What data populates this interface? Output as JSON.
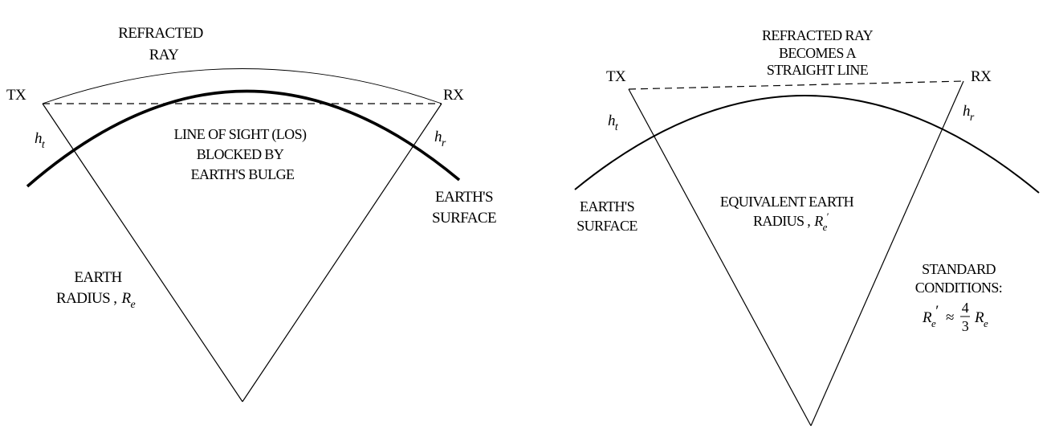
{
  "left": {
    "tx": "TX",
    "rx": "RX",
    "refracted_ray": [
      "REFRACTED",
      "RAY"
    ],
    "ht": {
      "main": "h",
      "sub": "t"
    },
    "hr": {
      "main": "h",
      "sub": "r"
    },
    "los": [
      "LINE OF SIGHT (LOS)",
      "BLOCKED BY",
      "EARTH'S BULGE"
    ],
    "surface": [
      "EARTH'S",
      "SURFACE"
    ],
    "radius": {
      "line1": "EARTH",
      "line2": "RADIUS ,",
      "symbol": "R",
      "sub": "e"
    }
  },
  "right": {
    "tx": "TX",
    "rx": "RX",
    "refracted_ray": [
      "REFRACTED RAY",
      "BECOMES A",
      "STRAIGHT LINE"
    ],
    "ht": {
      "main": "h",
      "sub": "t"
    },
    "hr": {
      "main": "h",
      "sub": "r"
    },
    "surface": [
      "EARTH'S",
      "SURFACE"
    ],
    "radius": {
      "line1": "EQUIVALENT EARTH",
      "line2": "RADIUS ,",
      "symbol": "R",
      "sub": "e",
      "prime": "′"
    },
    "standard": {
      "line1": "STANDARD",
      "line2": "CONDITIONS:",
      "lhs": "R",
      "lhs_sub": "e",
      "lhs_prime": "′",
      "approx": "≈",
      "num": "4",
      "den": "3",
      "rhs": "R",
      "rhs_sub": "e"
    }
  }
}
